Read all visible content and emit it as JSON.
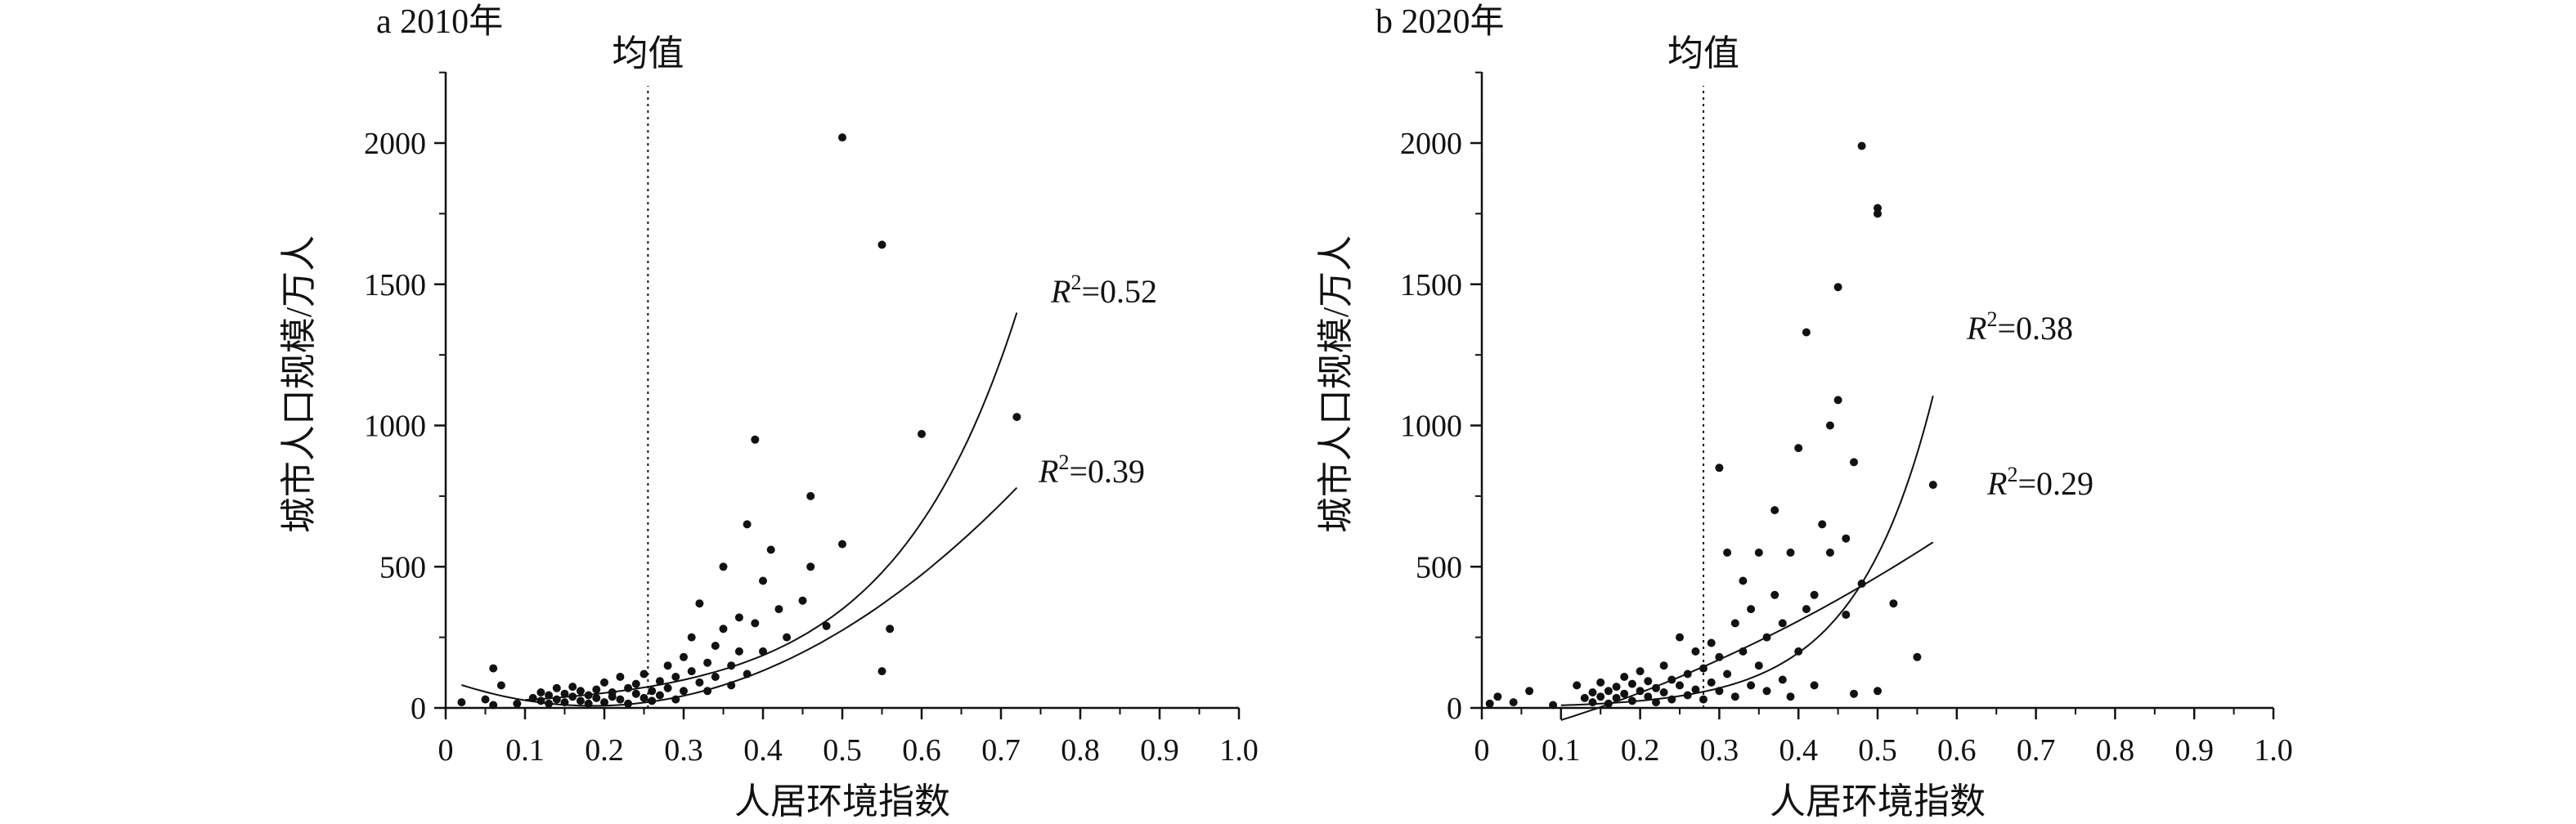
{
  "colors": {
    "ink": "#111111",
    "background": "#ffffff"
  },
  "chart_data": [
    {
      "type": "scatter",
      "title": "a 2010年",
      "xlabel": "人居环境指数",
      "ylabel": "城市人口规模/万人",
      "xlim": [
        0,
        1.0
      ],
      "ylim": [
        0,
        2200
      ],
      "x_ticks": [
        "0",
        "0.1",
        "0.2",
        "0.3",
        "0.4",
        "0.5",
        "0.6",
        "0.7",
        "0.8",
        "0.9",
        "1.0"
      ],
      "y_ticks": [
        "0",
        "500",
        "1000",
        "1500",
        "2000"
      ],
      "grid": false,
      "mean": {
        "label": "均值",
        "x": 0.255
      },
      "fits": [
        {
          "kind": "exponential",
          "label": "R²=0.52",
          "r2_symbol": "R",
          "r2_sup": "2",
          "r2_value": "=0.52",
          "a": 15,
          "b": 6.3,
          "x_range": [
            0.1,
            0.72
          ]
        },
        {
          "kind": "quadratic",
          "label": "R²=0.39",
          "r2_symbol": "R",
          "r2_sup": "2",
          "r2_value": "=0.39",
          "c": [
            100,
            -1000,
            2700
          ],
          "x_range": [
            0.02,
            0.72
          ]
        }
      ],
      "points": [
        [
          0.02,
          20
        ],
        [
          0.05,
          30
        ],
        [
          0.06,
          140
        ],
        [
          0.07,
          80
        ],
        [
          0.06,
          10
        ],
        [
          0.09,
          15
        ],
        [
          0.11,
          35
        ],
        [
          0.12,
          55
        ],
        [
          0.12,
          25
        ],
        [
          0.13,
          45
        ],
        [
          0.13,
          15
        ],
        [
          0.14,
          70
        ],
        [
          0.14,
          30
        ],
        [
          0.15,
          50
        ],
        [
          0.15,
          20
        ],
        [
          0.16,
          40
        ],
        [
          0.16,
          75
        ],
        [
          0.17,
          25
        ],
        [
          0.17,
          60
        ],
        [
          0.18,
          45
        ],
        [
          0.18,
          15
        ],
        [
          0.19,
          65
        ],
        [
          0.19,
          35
        ],
        [
          0.2,
          90
        ],
        [
          0.2,
          20
        ],
        [
          0.21,
          55
        ],
        [
          0.21,
          40
        ],
        [
          0.22,
          110
        ],
        [
          0.22,
          30
        ],
        [
          0.23,
          70
        ],
        [
          0.23,
          15
        ],
        [
          0.24,
          50
        ],
        [
          0.24,
          85
        ],
        [
          0.25,
          35
        ],
        [
          0.25,
          120
        ],
        [
          0.26,
          60
        ],
        [
          0.26,
          25
        ],
        [
          0.27,
          95
        ],
        [
          0.27,
          45
        ],
        [
          0.28,
          150
        ],
        [
          0.28,
          70
        ],
        [
          0.29,
          30
        ],
        [
          0.29,
          110
        ],
        [
          0.3,
          180
        ],
        [
          0.3,
          60
        ],
        [
          0.31,
          130
        ],
        [
          0.31,
          250
        ],
        [
          0.32,
          90
        ],
        [
          0.32,
          370
        ],
        [
          0.33,
          160
        ],
        [
          0.33,
          60
        ],
        [
          0.34,
          220
        ],
        [
          0.34,
          110
        ],
        [
          0.35,
          500
        ],
        [
          0.35,
          280
        ],
        [
          0.36,
          150
        ],
        [
          0.36,
          80
        ],
        [
          0.37,
          320
        ],
        [
          0.37,
          200
        ],
        [
          0.38,
          650
        ],
        [
          0.38,
          120
        ],
        [
          0.39,
          950
        ],
        [
          0.39,
          300
        ],
        [
          0.4,
          450
        ],
        [
          0.4,
          200
        ],
        [
          0.41,
          560
        ],
        [
          0.42,
          350
        ],
        [
          0.43,
          250
        ],
        [
          0.45,
          380
        ],
        [
          0.46,
          750
        ],
        [
          0.46,
          500
        ],
        [
          0.48,
          290
        ],
        [
          0.5,
          2020
        ],
        [
          0.5,
          580
        ],
        [
          0.55,
          1640
        ],
        [
          0.55,
          130
        ],
        [
          0.56,
          280
        ],
        [
          0.6,
          970
        ],
        [
          0.72,
          1030
        ]
      ]
    },
    {
      "type": "scatter",
      "title": "b 2020年",
      "xlabel": "人居环境指数",
      "ylabel": "城市人口规模/万人",
      "xlim": [
        0,
        1.0
      ],
      "ylim": [
        0,
        2200
      ],
      "x_ticks": [
        "0",
        "0.1",
        "0.2",
        "0.3",
        "0.4",
        "0.5",
        "0.6",
        "0.7",
        "0.8",
        "0.9",
        "1.0"
      ],
      "y_ticks": [
        "0",
        "500",
        "1000",
        "1500",
        "2000"
      ],
      "grid": false,
      "mean": {
        "label": "均值",
        "x": 0.28
      },
      "fits": [
        {
          "kind": "exponential",
          "label": "R²=0.38",
          "r2_symbol": "R",
          "r2_sup": "2",
          "r2_value": "=0.38",
          "a": 3.3,
          "b": 10.2,
          "x_range": [
            0.1,
            0.57
          ]
        },
        {
          "kind": "quadratic",
          "label": "R²=0.29",
          "r2_symbol": "R",
          "r2_sup": "2",
          "r2_value": "=0.29",
          "c": [
            -120,
            670,
            1000
          ],
          "x_range": [
            0.1,
            0.57
          ]
        }
      ],
      "points": [
        [
          0.01,
          15
        ],
        [
          0.02,
          40
        ],
        [
          0.04,
          20
        ],
        [
          0.06,
          60
        ],
        [
          0.09,
          10
        ],
        [
          0.12,
          80
        ],
        [
          0.13,
          35
        ],
        [
          0.14,
          55
        ],
        [
          0.14,
          20
        ],
        [
          0.15,
          90
        ],
        [
          0.15,
          40
        ],
        [
          0.16,
          60
        ],
        [
          0.16,
          15
        ],
        [
          0.17,
          75
        ],
        [
          0.17,
          35
        ],
        [
          0.18,
          110
        ],
        [
          0.18,
          50
        ],
        [
          0.19,
          25
        ],
        [
          0.19,
          85
        ],
        [
          0.2,
          60
        ],
        [
          0.2,
          130
        ],
        [
          0.21,
          40
        ],
        [
          0.21,
          95
        ],
        [
          0.22,
          70
        ],
        [
          0.22,
          20
        ],
        [
          0.23,
          150
        ],
        [
          0.23,
          55
        ],
        [
          0.24,
          100
        ],
        [
          0.24,
          30
        ],
        [
          0.25,
          250
        ],
        [
          0.25,
          80
        ],
        [
          0.26,
          120
        ],
        [
          0.26,
          45
        ],
        [
          0.27,
          200
        ],
        [
          0.27,
          65
        ],
        [
          0.28,
          140
        ],
        [
          0.28,
          30
        ],
        [
          0.29,
          230
        ],
        [
          0.29,
          90
        ],
        [
          0.3,
          180
        ],
        [
          0.3,
          850
        ],
        [
          0.3,
          60
        ],
        [
          0.31,
          550
        ],
        [
          0.31,
          120
        ],
        [
          0.32,
          300
        ],
        [
          0.32,
          40
        ],
        [
          0.33,
          450
        ],
        [
          0.33,
          200
        ],
        [
          0.34,
          80
        ],
        [
          0.34,
          350
        ],
        [
          0.35,
          550
        ],
        [
          0.35,
          150
        ],
        [
          0.36,
          250
        ],
        [
          0.36,
          60
        ],
        [
          0.37,
          700
        ],
        [
          0.37,
          400
        ],
        [
          0.38,
          300
        ],
        [
          0.38,
          100
        ],
        [
          0.39,
          550
        ],
        [
          0.39,
          40
        ],
        [
          0.4,
          920
        ],
        [
          0.4,
          200
        ],
        [
          0.41,
          1330
        ],
        [
          0.41,
          350
        ],
        [
          0.42,
          400
        ],
        [
          0.42,
          80
        ],
        [
          0.43,
          650
        ],
        [
          0.44,
          1000
        ],
        [
          0.44,
          550
        ],
        [
          0.45,
          1490
        ],
        [
          0.45,
          1090
        ],
        [
          0.46,
          600
        ],
        [
          0.46,
          330
        ],
        [
          0.47,
          870
        ],
        [
          0.47,
          50
        ],
        [
          0.48,
          1990
        ],
        [
          0.48,
          440
        ],
        [
          0.5,
          1770
        ],
        [
          0.5,
          1750
        ],
        [
          0.5,
          60
        ],
        [
          0.52,
          370
        ],
        [
          0.55,
          180
        ],
        [
          0.57,
          790
        ]
      ]
    }
  ]
}
